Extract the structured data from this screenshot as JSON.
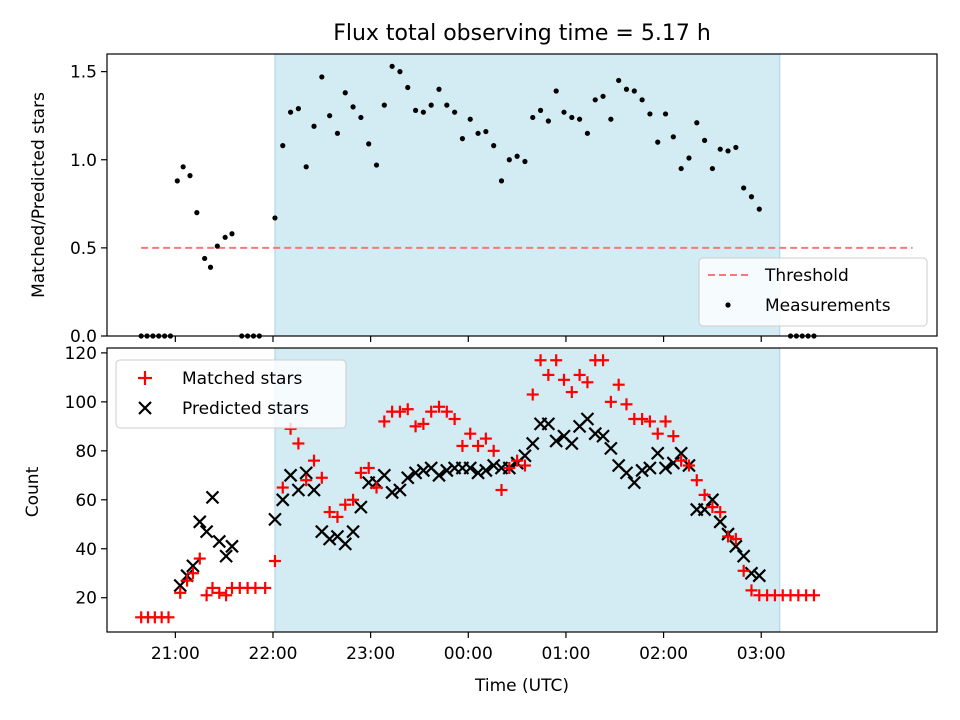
{
  "chart_data": {
    "type": "scatter",
    "title": "Flux total observing time = 5.17 h",
    "xlabel": "Time (UTC)",
    "x_unit": "hours since 20:00 UTC",
    "x_ticks": [
      {
        "v": 1,
        "label": "21:00"
      },
      {
        "v": 2,
        "label": "22:00"
      },
      {
        "v": 3,
        "label": "23:00"
      },
      {
        "v": 4,
        "label": "00:00"
      },
      {
        "v": 5,
        "label": "01:00"
      },
      {
        "v": 6,
        "label": "02:00"
      },
      {
        "v": 7,
        "label": "03:00"
      }
    ],
    "xlim": [
      0.3,
      8.8
    ],
    "observing_window": [
      2.02,
      7.19
    ],
    "top": {
      "ylabel": "Matched/Predicted stars",
      "ylim": [
        0,
        1.6
      ],
      "yticks": [
        0.0,
        0.5,
        1.0,
        1.5
      ],
      "ytick_labels": [
        "0.0",
        "0.5",
        "1.0",
        "1.5"
      ],
      "threshold": 0.5,
      "threshold_x": [
        0.65,
        8.55
      ],
      "legend": {
        "threshold": "Threshold",
        "measurements": "Measurements"
      },
      "measurements": [
        [
          0.65,
          0
        ],
        [
          0.71,
          0
        ],
        [
          0.77,
          0
        ],
        [
          0.83,
          0
        ],
        [
          0.89,
          0
        ],
        [
          0.95,
          0
        ],
        [
          1.02,
          0.88
        ],
        [
          1.08,
          0.96
        ],
        [
          1.15,
          0.91
        ],
        [
          1.22,
          0.7
        ],
        [
          1.3,
          0.44
        ],
        [
          1.36,
          0.39
        ],
        [
          1.43,
          0.51
        ],
        [
          1.51,
          0.56
        ],
        [
          1.58,
          0.58
        ],
        [
          1.68,
          0
        ],
        [
          1.74,
          0
        ],
        [
          1.8,
          0
        ],
        [
          1.86,
          0
        ],
        [
          2.02,
          0.67
        ],
        [
          2.1,
          1.08
        ],
        [
          2.18,
          1.27
        ],
        [
          2.26,
          1.29
        ],
        [
          2.34,
          0.96
        ],
        [
          2.42,
          1.19
        ],
        [
          2.5,
          1.47
        ],
        [
          2.58,
          1.25
        ],
        [
          2.66,
          1.15
        ],
        [
          2.74,
          1.38
        ],
        [
          2.82,
          1.3
        ],
        [
          2.9,
          1.24
        ],
        [
          2.98,
          1.09
        ],
        [
          3.06,
          0.97
        ],
        [
          3.14,
          1.31
        ],
        [
          3.22,
          1.53
        ],
        [
          3.3,
          1.5
        ],
        [
          3.38,
          1.41
        ],
        [
          3.46,
          1.28
        ],
        [
          3.54,
          1.27
        ],
        [
          3.62,
          1.31
        ],
        [
          3.7,
          1.4
        ],
        [
          3.78,
          1.31
        ],
        [
          3.86,
          1.27
        ],
        [
          3.94,
          1.12
        ],
        [
          4.02,
          1.23
        ],
        [
          4.1,
          1.15
        ],
        [
          4.18,
          1.16
        ],
        [
          4.26,
          1.08
        ],
        [
          4.34,
          0.88
        ],
        [
          4.42,
          1.0
        ],
        [
          4.5,
          1.02
        ],
        [
          4.58,
          0.99
        ],
        [
          4.66,
          1.24
        ],
        [
          4.74,
          1.28
        ],
        [
          4.82,
          1.22
        ],
        [
          4.9,
          1.39
        ],
        [
          4.98,
          1.27
        ],
        [
          5.06,
          1.24
        ],
        [
          5.14,
          1.23
        ],
        [
          5.22,
          1.15
        ],
        [
          5.3,
          1.34
        ],
        [
          5.38,
          1.36
        ],
        [
          5.46,
          1.23
        ],
        [
          5.54,
          1.45
        ],
        [
          5.62,
          1.4
        ],
        [
          5.7,
          1.39
        ],
        [
          5.78,
          1.34
        ],
        [
          5.86,
          1.26
        ],
        [
          5.94,
          1.1
        ],
        [
          6.02,
          1.26
        ],
        [
          6.1,
          1.13
        ],
        [
          6.18,
          0.95
        ],
        [
          6.26,
          1.01
        ],
        [
          6.34,
          1.21
        ],
        [
          6.42,
          1.11
        ],
        [
          6.5,
          0.95
        ],
        [
          6.58,
          1.06
        ],
        [
          6.66,
          1.05
        ],
        [
          6.74,
          1.07
        ],
        [
          6.82,
          0.84
        ],
        [
          6.9,
          0.79
        ],
        [
          6.98,
          0.72
        ],
        [
          7.3,
          0
        ],
        [
          7.36,
          0
        ],
        [
          7.42,
          0
        ],
        [
          7.48,
          0
        ],
        [
          7.54,
          0
        ]
      ]
    },
    "bottom": {
      "ylabel": "Count",
      "ylim": [
        6,
        122
      ],
      "yticks": [
        20,
        40,
        60,
        80,
        100,
        120
      ],
      "ytick_labels": [
        "20",
        "40",
        "60",
        "80",
        "100",
        "120"
      ],
      "series": [
        {
          "name": "Matched stars",
          "color": "#ff0000",
          "marker": "plus",
          "points": [
            [
              0.65,
              12
            ],
            [
              0.72,
              12
            ],
            [
              0.79,
              12
            ],
            [
              0.86,
              12
            ],
            [
              0.93,
              12
            ],
            [
              1.05,
              22
            ],
            [
              1.12,
              27
            ],
            [
              1.18,
              30
            ],
            [
              1.25,
              36
            ],
            [
              1.32,
              21
            ],
            [
              1.38,
              24
            ],
            [
              1.45,
              22
            ],
            [
              1.52,
              21
            ],
            [
              1.58,
              24
            ],
            [
              1.66,
              24
            ],
            [
              1.74,
              24
            ],
            [
              1.82,
              24
            ],
            [
              1.92,
              24
            ],
            [
              2.02,
              35
            ],
            [
              2.1,
              65
            ],
            [
              2.18,
              89
            ],
            [
              2.26,
              83
            ],
            [
              2.34,
              68
            ],
            [
              2.42,
              76
            ],
            [
              2.5,
              69
            ],
            [
              2.58,
              55
            ],
            [
              2.66,
              53
            ],
            [
              2.74,
              58
            ],
            [
              2.82,
              60
            ],
            [
              2.9,
              71
            ],
            [
              2.98,
              73
            ],
            [
              3.06,
              65
            ],
            [
              3.14,
              92
            ],
            [
              3.22,
              96
            ],
            [
              3.3,
              96
            ],
            [
              3.38,
              97
            ],
            [
              3.46,
              90
            ],
            [
              3.54,
              91
            ],
            [
              3.62,
              96
            ],
            [
              3.7,
              98
            ],
            [
              3.78,
              96
            ],
            [
              3.86,
              93
            ],
            [
              3.94,
              82
            ],
            [
              4.02,
              87
            ],
            [
              4.1,
              82
            ],
            [
              4.18,
              85
            ],
            [
              4.26,
              80
            ],
            [
              4.34,
              64
            ],
            [
              4.42,
              73
            ],
            [
              4.5,
              76
            ],
            [
              4.58,
              74
            ],
            [
              4.66,
              103
            ],
            [
              4.74,
              117
            ],
            [
              4.82,
              111
            ],
            [
              4.9,
              117
            ],
            [
              4.98,
              109
            ],
            [
              5.06,
              104
            ],
            [
              5.14,
              111
            ],
            [
              5.22,
              108
            ],
            [
              5.3,
              117
            ],
            [
              5.38,
              117
            ],
            [
              5.46,
              100
            ],
            [
              5.54,
              107
            ],
            [
              5.62,
              99
            ],
            [
              5.7,
              93
            ],
            [
              5.78,
              93
            ],
            [
              5.86,
              92
            ],
            [
              5.94,
              87
            ],
            [
              6.02,
              92
            ],
            [
              6.1,
              86
            ],
            [
              6.18,
              76
            ],
            [
              6.26,
              74
            ],
            [
              6.34,
              68
            ],
            [
              6.42,
              62
            ],
            [
              6.5,
              57
            ],
            [
              6.58,
              55
            ],
            [
              6.66,
              45
            ],
            [
              6.74,
              44
            ],
            [
              6.82,
              31
            ],
            [
              6.9,
              23
            ],
            [
              6.98,
              21
            ],
            [
              7.06,
              21
            ],
            [
              7.14,
              21
            ],
            [
              7.22,
              21
            ],
            [
              7.3,
              21
            ],
            [
              7.38,
              21
            ],
            [
              7.46,
              21
            ],
            [
              7.54,
              21
            ]
          ]
        },
        {
          "name": "Predicted stars",
          "color": "#000000",
          "marker": "x",
          "points": [
            [
              1.05,
              25
            ],
            [
              1.12,
              29
            ],
            [
              1.18,
              33
            ],
            [
              1.25,
              51
            ],
            [
              1.32,
              47
            ],
            [
              1.38,
              61
            ],
            [
              1.45,
              43
            ],
            [
              1.52,
              37
            ],
            [
              1.58,
              41
            ],
            [
              2.02,
              52
            ],
            [
              2.1,
              60
            ],
            [
              2.18,
              70
            ],
            [
              2.26,
              64
            ],
            [
              2.34,
              71
            ],
            [
              2.42,
              64
            ],
            [
              2.5,
              47
            ],
            [
              2.58,
              44
            ],
            [
              2.66,
              45
            ],
            [
              2.74,
              42
            ],
            [
              2.82,
              47
            ],
            [
              2.9,
              57
            ],
            [
              2.98,
              67
            ],
            [
              3.06,
              67
            ],
            [
              3.14,
              70
            ],
            [
              3.22,
              63
            ],
            [
              3.3,
              64
            ],
            [
              3.38,
              69
            ],
            [
              3.46,
              71
            ],
            [
              3.54,
              72
            ],
            [
              3.62,
              73
            ],
            [
              3.7,
              70
            ],
            [
              3.78,
              72
            ],
            [
              3.86,
              73
            ],
            [
              3.94,
              73
            ],
            [
              4.02,
              73
            ],
            [
              4.1,
              71
            ],
            [
              4.18,
              72
            ],
            [
              4.26,
              74
            ],
            [
              4.34,
              73
            ],
            [
              4.42,
              73
            ],
            [
              4.5,
              75
            ],
            [
              4.58,
              78
            ],
            [
              4.66,
              83
            ],
            [
              4.74,
              91
            ],
            [
              4.82,
              91
            ],
            [
              4.9,
              84
            ],
            [
              4.98,
              86
            ],
            [
              5.06,
              83
            ],
            [
              5.14,
              90
            ],
            [
              5.22,
              93
            ],
            [
              5.3,
              87
            ],
            [
              5.38,
              86
            ],
            [
              5.46,
              81
            ],
            [
              5.54,
              74
            ],
            [
              5.62,
              71
            ],
            [
              5.7,
              67
            ],
            [
              5.78,
              72
            ],
            [
              5.86,
              73
            ],
            [
              5.94,
              79
            ],
            [
              6.02,
              73
            ],
            [
              6.1,
              75
            ],
            [
              6.18,
              79
            ],
            [
              6.26,
              74
            ],
            [
              6.34,
              56
            ],
            [
              6.42,
              56
            ],
            [
              6.5,
              60
            ],
            [
              6.58,
              51
            ],
            [
              6.66,
              46
            ],
            [
              6.74,
              41
            ],
            [
              6.82,
              37
            ],
            [
              6.9,
              30
            ],
            [
              6.98,
              29
            ]
          ]
        }
      ]
    },
    "colors": {
      "window_fill": "#d3ebf2",
      "window_edge": "#a9d6e3",
      "threshold": "#f47a7a",
      "measurement": "#000000"
    }
  }
}
